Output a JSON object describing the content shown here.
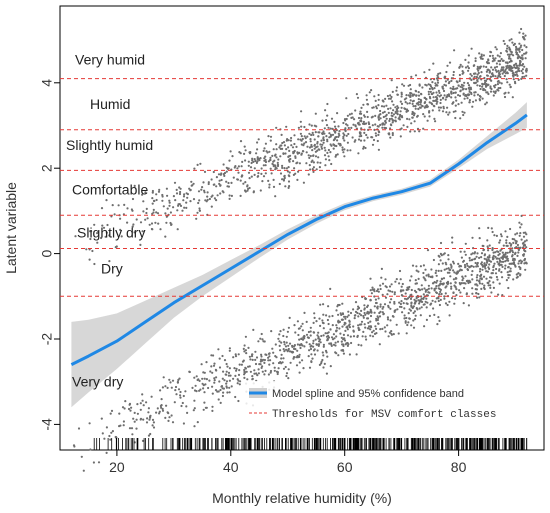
{
  "chart_data": {
    "type": "scatter",
    "xlabel": "Monthly relative humidity (%)",
    "ylabel": "Latent variable",
    "xlim": [
      10,
      95
    ],
    "ylim": [
      -4.6,
      5.8
    ],
    "x_ticks": [
      20,
      40,
      60,
      80
    ],
    "y_ticks": [
      -4,
      -2,
      0,
      2,
      4
    ],
    "grid": false,
    "colors": {
      "spline": "#1f88e5",
      "band": "#d0d0d0",
      "points": "#6e6e6e",
      "threshold": "#e53935",
      "rug": "#000000"
    },
    "thresholds": [
      4.1,
      2.9,
      1.95,
      0.9,
      0.12,
      -1.0
    ],
    "comfort_classes": [
      {
        "label": "Very humid",
        "y": 4.55
      },
      {
        "label": "Humid",
        "y": 3.5
      },
      {
        "label": "Slightly humid",
        "y": 2.55
      },
      {
        "label": "Comfortable",
        "y": 1.5
      },
      {
        "label": "Slightly dry",
        "y": 0.5
      },
      {
        "label": "Dry",
        "y": -0.35
      },
      {
        "label": "Very dry",
        "y": -3.0
      }
    ],
    "spline": {
      "x": [
        12,
        15,
        20,
        25,
        30,
        35,
        40,
        45,
        50,
        55,
        60,
        65,
        70,
        75,
        80,
        85,
        90,
        92
      ],
      "y": [
        -2.6,
        -2.4,
        -2.05,
        -1.6,
        -1.15,
        -0.75,
        -0.35,
        0.05,
        0.45,
        0.8,
        1.1,
        1.3,
        1.45,
        1.65,
        2.1,
        2.6,
        3.05,
        3.25
      ],
      "band_half_width": [
        1.0,
        0.85,
        0.65,
        0.5,
        0.35,
        0.25,
        0.2,
        0.15,
        0.12,
        0.1,
        0.08,
        0.07,
        0.07,
        0.08,
        0.1,
        0.15,
        0.25,
        0.3
      ]
    },
    "scatter_clusters": {
      "upper": {
        "x_range": [
          12,
          92
        ],
        "trend_start": 0.2,
        "trend_slope": 0.055,
        "spread": 0.45
      },
      "lower": {
        "x_range": [
          12,
          92
        ],
        "trend_start": -4.5,
        "trend_slope": 0.058,
        "spread": 0.5
      },
      "point_count_each": 1400
    },
    "rug": {
      "x_range": [
        13,
        92
      ]
    },
    "legend": {
      "position": "bottom-right",
      "items": [
        {
          "label": "Model spline and 95% confidence band",
          "style": "band-line"
        },
        {
          "label": "Thresholds for MSV comfort classes",
          "style": "dashed"
        }
      ]
    }
  }
}
